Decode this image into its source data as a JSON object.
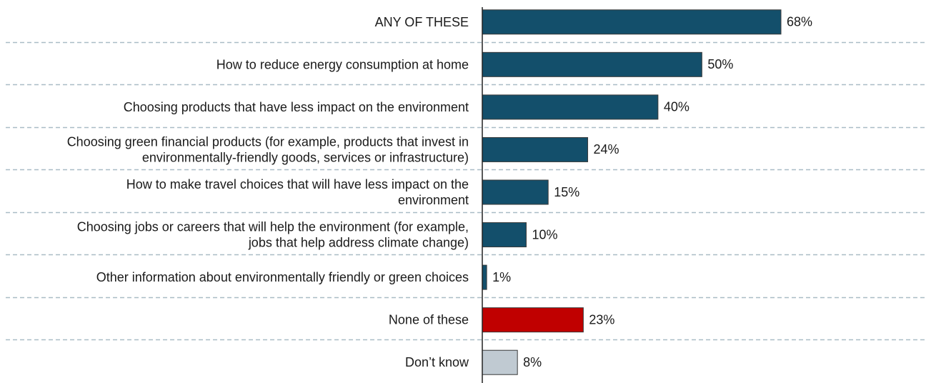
{
  "chart_data": {
    "type": "bar",
    "orientation": "horizontal",
    "grid": "dashed horizontal separators",
    "categories": [
      [
        "ANY OF THESE"
      ],
      [
        "How to reduce energy consumption at home"
      ],
      [
        "Choosing products that have less impact on the environment"
      ],
      [
        "Choosing green financial products (for example, products that invest in",
        "environmentally-friendly goods, services or infrastructure)"
      ],
      [
        "How to make travel choices that will have less impact on the",
        "environment"
      ],
      [
        "Choosing jobs or careers that will help the environment (for example,",
        "jobs that help address climate change)"
      ],
      [
        "Other information about environmentally friendly or green choices"
      ],
      [
        "None of these"
      ],
      [
        "Don’t know"
      ]
    ],
    "values": [
      68,
      50,
      40,
      24,
      15,
      10,
      1,
      23,
      8
    ],
    "value_labels": [
      "68%",
      "50%",
      "40%",
      "24%",
      "15%",
      "10%",
      "1%",
      "23%",
      "8%"
    ],
    "bar_colors": [
      "#134f6b",
      "#134f6b",
      "#134f6b",
      "#134f6b",
      "#134f6b",
      "#134f6b",
      "#134f6b",
      "#c00000",
      "#c0cad2"
    ],
    "xlim": [
      0,
      100
    ]
  }
}
